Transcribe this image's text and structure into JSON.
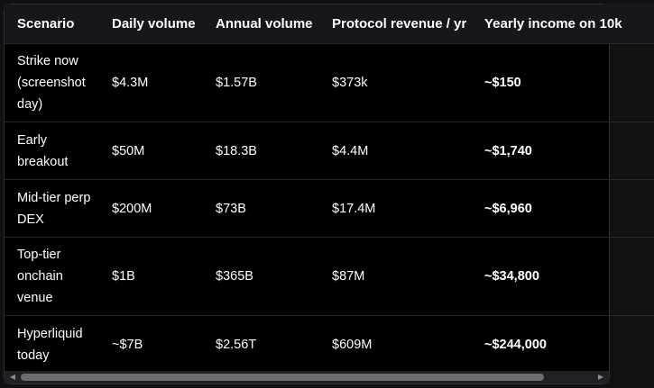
{
  "table": {
    "headers": [
      "Scenario",
      "Daily volume",
      "Annual volume",
      "Protocol revenue / yr",
      "Yearly income on 10k"
    ],
    "rows": [
      {
        "scenario": "Strike now (screenshot day)",
        "daily": "$4.3M",
        "annual": "$1.57B",
        "revenue": "$373k",
        "income": "~$150"
      },
      {
        "scenario": "Early breakout",
        "daily": "$50M",
        "annual": "$18.3B",
        "revenue": "$4.4M",
        "income": "~$1,740"
      },
      {
        "scenario": "Mid-tier perp DEX",
        "daily": "$200M",
        "annual": "$73B",
        "revenue": "$17.4M",
        "income": "~$6,960"
      },
      {
        "scenario": "Top-tier onchain venue",
        "daily": "$1B",
        "annual": "$365B",
        "revenue": "$87M",
        "income": "~$34,800"
      },
      {
        "scenario": "Hyperliquid today",
        "daily": "~$7B",
        "annual": "$2.56T",
        "revenue": "$609M",
        "income": "~$244,000"
      }
    ]
  },
  "scrollbar": {
    "left_icon": "triangle-left-icon",
    "right_icon": "triangle-right-icon"
  }
}
